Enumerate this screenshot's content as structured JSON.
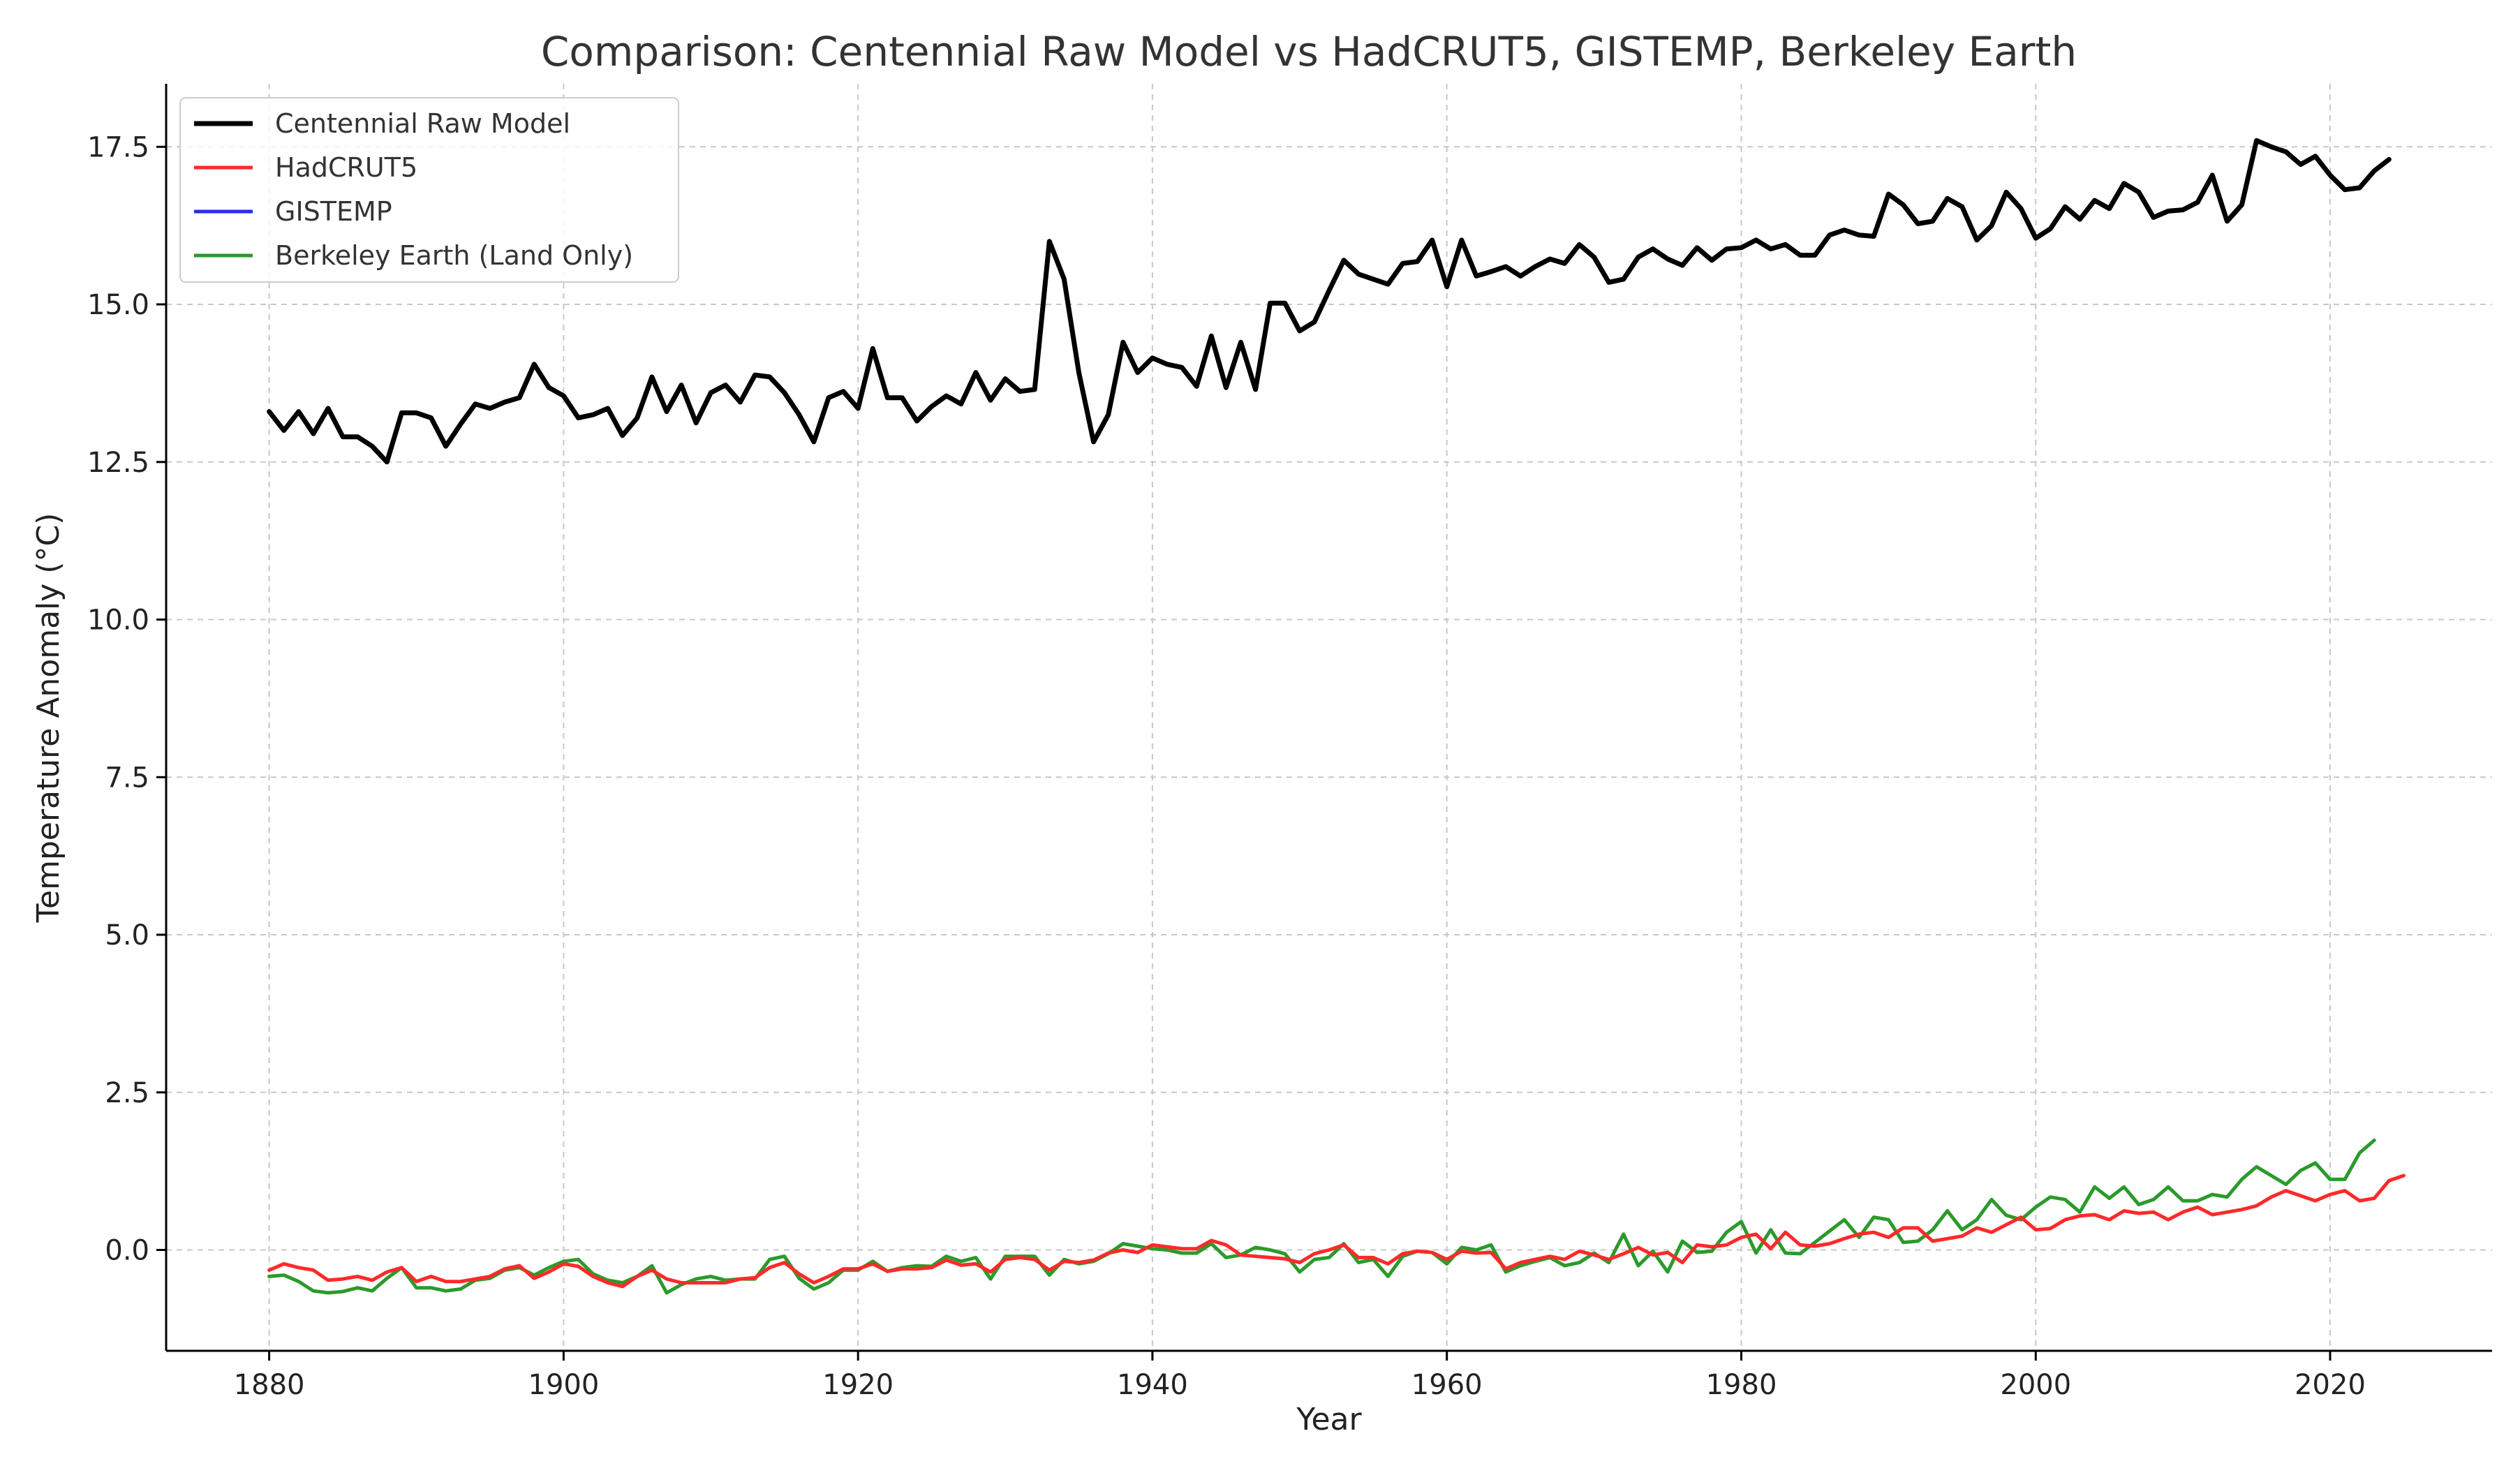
{
  "chart_data": {
    "type": "line",
    "title": "Comparison: Centennial Raw Model vs HadCRUT5, GISTEMP, Berkeley Earth",
    "xlabel": "Year",
    "ylabel": "Temperature Anomaly (°C)",
    "xlim": [
      1873,
      2031
    ],
    "ylim": [
      -1.6,
      18.5
    ],
    "xticks": [
      1880,
      1900,
      1920,
      1940,
      1960,
      1980,
      2000,
      2020
    ],
    "xtick_labels": [
      "1880",
      "1900",
      "1920",
      "1940",
      "1960",
      "1980",
      "2000",
      "2020"
    ],
    "yticks": [
      0,
      2.5,
      5,
      7.5,
      10,
      12.5,
      15,
      17.5
    ],
    "ytick_labels": [
      "0.0",
      "2.5",
      "5.0",
      "7.5",
      "10.0",
      "12.5",
      "15.0",
      "17.5"
    ],
    "grid": true,
    "legend_position": "top-left",
    "x_start": 1880,
    "series": [
      {
        "name": "Centennial Raw Model",
        "color": "#000000",
        "values": [
          13.3,
          13.0,
          13.3,
          12.95,
          13.35,
          12.9,
          12.9,
          12.75,
          12.5,
          13.28,
          13.28,
          13.2,
          12.75,
          13.1,
          13.42,
          13.35,
          13.45,
          13.52,
          14.05,
          13.68,
          13.55,
          13.2,
          13.25,
          13.35,
          12.92,
          13.2,
          13.85,
          13.3,
          13.72,
          13.12,
          13.6,
          13.72,
          13.45,
          13.88,
          13.85,
          13.6,
          13.25,
          12.82,
          13.52,
          13.62,
          13.35,
          14.3,
          13.52,
          13.52,
          13.15,
          13.38,
          13.55,
          13.42,
          13.92,
          13.48,
          13.82,
          13.62,
          13.65,
          16.0,
          15.4,
          13.92,
          12.82,
          13.25,
          14.4,
          13.92,
          14.15,
          14.05,
          14.0,
          13.7,
          14.5,
          13.68,
          14.4,
          13.65,
          15.02,
          15.02,
          14.58,
          14.72,
          15.22,
          15.7,
          15.48,
          15.4,
          15.32,
          15.65,
          15.68,
          16.02,
          15.28,
          16.02,
          15.45,
          15.52,
          15.6,
          15.45,
          15.6,
          15.72,
          15.65,
          15.95,
          15.75,
          15.35,
          15.4,
          15.75,
          15.88,
          15.72,
          15.62,
          15.9,
          15.7,
          15.88,
          15.9,
          16.02,
          15.88,
          15.95,
          15.78,
          15.78,
          16.1,
          16.18,
          16.1,
          16.08,
          16.75,
          16.58,
          16.28,
          16.32,
          16.68,
          16.55,
          16.02,
          16.25,
          16.78,
          16.52,
          16.05,
          16.2,
          16.55,
          16.35,
          16.65,
          16.52,
          16.92,
          16.78,
          16.38,
          16.48,
          16.5,
          16.62,
          17.05,
          16.32,
          16.58,
          17.6,
          17.5,
          17.42,
          17.22,
          17.35,
          17.05,
          16.82,
          16.85,
          17.12,
          17.3
        ]
      },
      {
        "name": "HadCRUT5",
        "color": "#ff2a2a",
        "values": [
          -0.32,
          -0.22,
          -0.28,
          -0.32,
          -0.48,
          -0.46,
          -0.42,
          -0.48,
          -0.35,
          -0.28,
          -0.5,
          -0.42,
          -0.5,
          -0.5,
          -0.46,
          -0.42,
          -0.3,
          -0.25,
          -0.45,
          -0.35,
          -0.22,
          -0.26,
          -0.42,
          -0.52,
          -0.58,
          -0.42,
          -0.32,
          -0.46,
          -0.52,
          -0.52,
          -0.52,
          -0.52,
          -0.46,
          -0.44,
          -0.28,
          -0.2,
          -0.38,
          -0.52,
          -0.42,
          -0.3,
          -0.3,
          -0.22,
          -0.34,
          -0.3,
          -0.3,
          -0.28,
          -0.16,
          -0.24,
          -0.22,
          -0.35,
          -0.15,
          -0.12,
          -0.15,
          -0.32,
          -0.18,
          -0.2,
          -0.16,
          -0.05,
          0.0,
          -0.04,
          0.08,
          0.05,
          0.02,
          0.02,
          0.15,
          0.08,
          -0.08,
          -0.1,
          -0.12,
          -0.14,
          -0.2,
          -0.06,
          0.0,
          0.08,
          -0.12,
          -0.12,
          -0.22,
          -0.06,
          -0.02,
          -0.04,
          -0.15,
          -0.02,
          -0.05,
          -0.04,
          -0.3,
          -0.2,
          -0.15,
          -0.1,
          -0.15,
          -0.02,
          -0.08,
          -0.15,
          -0.06,
          0.04,
          -0.08,
          -0.04,
          -0.2,
          0.08,
          0.05,
          0.08,
          0.2,
          0.25,
          0.02,
          0.28,
          0.08,
          0.06,
          0.1,
          0.18,
          0.25,
          0.28,
          0.2,
          0.35,
          0.35,
          0.14,
          0.18,
          0.22,
          0.35,
          0.28,
          0.4,
          0.52,
          0.32,
          0.34,
          0.48,
          0.54,
          0.56,
          0.48,
          0.62,
          0.58,
          0.6,
          0.48,
          0.6,
          0.68,
          0.56,
          0.6,
          0.64,
          0.7,
          0.84,
          0.94,
          0.86,
          0.78,
          0.88,
          0.94,
          0.78,
          0.82,
          1.1,
          1.18
        ]
      },
      {
        "name": "GISTEMP",
        "color": "#2a2aee",
        "values": []
      },
      {
        "name": "Berkeley Earth (Land Only)",
        "color": "#2b9a2b",
        "values": [
          -0.42,
          -0.4,
          -0.5,
          -0.65,
          -0.68,
          -0.66,
          -0.6,
          -0.65,
          -0.45,
          -0.28,
          -0.6,
          -0.6,
          -0.65,
          -0.62,
          -0.48,
          -0.45,
          -0.32,
          -0.28,
          -0.4,
          -0.28,
          -0.18,
          -0.15,
          -0.38,
          -0.48,
          -0.52,
          -0.42,
          -0.25,
          -0.68,
          -0.55,
          -0.46,
          -0.42,
          -0.48,
          -0.46,
          -0.46,
          -0.15,
          -0.1,
          -0.45,
          -0.62,
          -0.52,
          -0.32,
          -0.32,
          -0.18,
          -0.34,
          -0.28,
          -0.25,
          -0.26,
          -0.1,
          -0.18,
          -0.12,
          -0.46,
          -0.1,
          -0.1,
          -0.1,
          -0.4,
          -0.15,
          -0.22,
          -0.18,
          -0.06,
          0.1,
          0.06,
          0.02,
          0.0,
          -0.05,
          -0.05,
          0.1,
          -0.12,
          -0.08,
          0.04,
          0.0,
          -0.06,
          -0.35,
          -0.15,
          -0.12,
          0.1,
          -0.2,
          -0.15,
          -0.42,
          -0.1,
          -0.02,
          -0.04,
          -0.22,
          0.04,
          0.0,
          0.08,
          -0.35,
          -0.25,
          -0.18,
          -0.12,
          -0.25,
          -0.2,
          -0.05,
          -0.2,
          0.25,
          -0.25,
          -0.02,
          -0.35,
          0.14,
          -0.04,
          -0.02,
          0.28,
          0.45,
          -0.05,
          0.32,
          -0.05,
          -0.06,
          0.12,
          0.3,
          0.48,
          0.2,
          0.52,
          0.48,
          0.12,
          0.14,
          0.32,
          0.62,
          0.32,
          0.48,
          0.8,
          0.55,
          0.48,
          0.68,
          0.84,
          0.8,
          0.6,
          1.0,
          0.82,
          1.0,
          0.72,
          0.8,
          1.0,
          0.78,
          0.78,
          0.88,
          0.84,
          1.12,
          1.32,
          1.18,
          1.04,
          1.26,
          1.38,
          1.12,
          1.12,
          1.54,
          1.74
        ]
      }
    ]
  }
}
